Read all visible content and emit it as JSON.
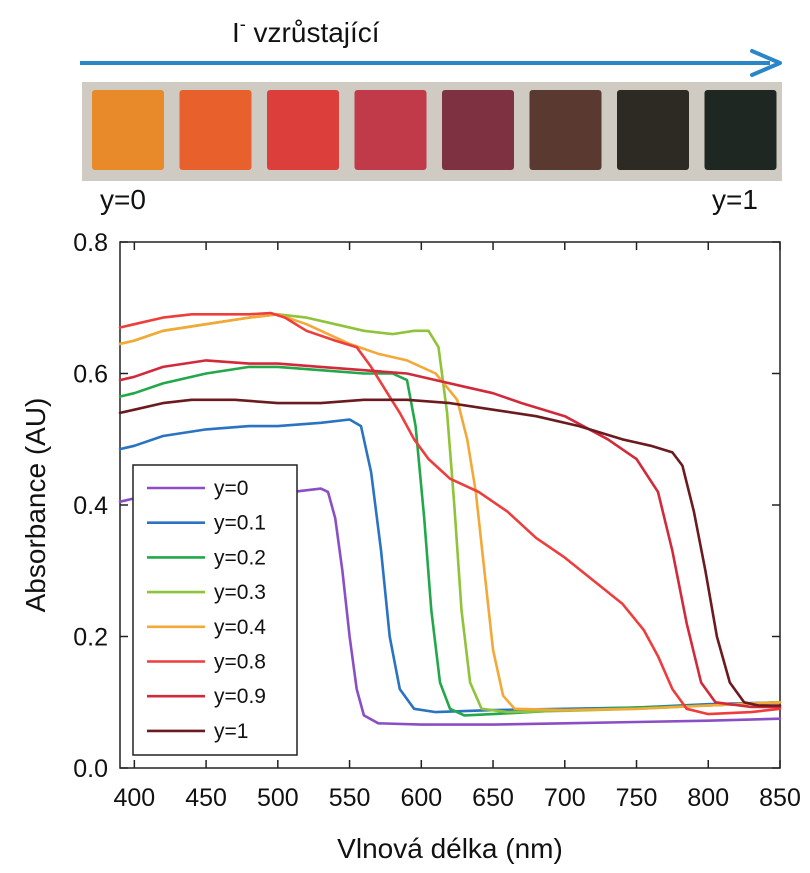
{
  "banner": {
    "ion_symbol": "I",
    "ion_charge": "-",
    "text": " vzrůstající",
    "arrow_color": "#2b86c8"
  },
  "strip": {
    "left_label": "y=0",
    "right_label": "y=1",
    "frame_color": "#cfcac2",
    "samples": [
      {
        "color": "#e88a2a"
      },
      {
        "color": "#e8602c"
      },
      {
        "color": "#dc3f3b"
      },
      {
        "color": "#c13a49"
      },
      {
        "color": "#7e3140"
      },
      {
        "color": "#5a3a30"
      },
      {
        "color": "#2c2a22"
      },
      {
        "color": "#1e2722"
      }
    ]
  },
  "chart_data": {
    "type": "line",
    "xlabel": "Vlnová délka (nm)",
    "ylabel": "Absorbance (AU)",
    "xlim": [
      390,
      850
    ],
    "ylim": [
      0.0,
      0.8
    ],
    "x_ticks": [
      400,
      450,
      500,
      550,
      600,
      650,
      700,
      750,
      800,
      850
    ],
    "x_tick_labels": [
      "400",
      "450",
      "500",
      "550",
      "600",
      "650",
      "700",
      "750",
      "800",
      "850"
    ],
    "y_ticks": [
      0.0,
      0.2,
      0.4,
      0.6,
      0.8
    ],
    "y_tick_labels": [
      "0.0",
      "0.2",
      "0.4",
      "0.6",
      "0.8"
    ],
    "grid": false,
    "legend_position": "bottom-left",
    "series": [
      {
        "name": "y=0",
        "color": "#8a4fc4",
        "points": [
          [
            390,
            0.405
          ],
          [
            400,
            0.41
          ],
          [
            430,
            0.41
          ],
          [
            460,
            0.41
          ],
          [
            490,
            0.415
          ],
          [
            510,
            0.42
          ],
          [
            530,
            0.425
          ],
          [
            535,
            0.42
          ],
          [
            540,
            0.38
          ],
          [
            545,
            0.3
          ],
          [
            550,
            0.2
          ],
          [
            555,
            0.12
          ],
          [
            560,
            0.08
          ],
          [
            570,
            0.068
          ],
          [
            600,
            0.066
          ],
          [
            650,
            0.066
          ],
          [
            700,
            0.068
          ],
          [
            750,
            0.07
          ],
          [
            800,
            0.072
          ],
          [
            850,
            0.075
          ]
        ]
      },
      {
        "name": "y=0.1",
        "color": "#2a72c2",
        "points": [
          [
            390,
            0.485
          ],
          [
            400,
            0.49
          ],
          [
            420,
            0.505
          ],
          [
            450,
            0.515
          ],
          [
            480,
            0.52
          ],
          [
            500,
            0.52
          ],
          [
            530,
            0.525
          ],
          [
            550,
            0.53
          ],
          [
            558,
            0.52
          ],
          [
            565,
            0.45
          ],
          [
            572,
            0.33
          ],
          [
            578,
            0.2
          ],
          [
            585,
            0.12
          ],
          [
            595,
            0.09
          ],
          [
            610,
            0.085
          ],
          [
            650,
            0.088
          ],
          [
            700,
            0.09
          ],
          [
            750,
            0.092
          ],
          [
            800,
            0.097
          ],
          [
            850,
            0.1
          ]
        ]
      },
      {
        "name": "y=0.2",
        "color": "#22a84a",
        "points": [
          [
            390,
            0.565
          ],
          [
            400,
            0.57
          ],
          [
            420,
            0.585
          ],
          [
            450,
            0.6
          ],
          [
            480,
            0.61
          ],
          [
            500,
            0.61
          ],
          [
            530,
            0.605
          ],
          [
            560,
            0.6
          ],
          [
            580,
            0.6
          ],
          [
            590,
            0.59
          ],
          [
            596,
            0.52
          ],
          [
            602,
            0.38
          ],
          [
            607,
            0.24
          ],
          [
            613,
            0.13
          ],
          [
            620,
            0.09
          ],
          [
            630,
            0.08
          ],
          [
            650,
            0.082
          ],
          [
            700,
            0.088
          ],
          [
            750,
            0.092
          ],
          [
            800,
            0.095
          ],
          [
            850,
            0.1
          ]
        ]
      },
      {
        "name": "y=0.3",
        "color": "#8ec33a",
        "points": [
          [
            390,
            0.645
          ],
          [
            400,
            0.65
          ],
          [
            420,
            0.665
          ],
          [
            450,
            0.675
          ],
          [
            480,
            0.685
          ],
          [
            500,
            0.69
          ],
          [
            520,
            0.685
          ],
          [
            540,
            0.675
          ],
          [
            560,
            0.665
          ],
          [
            580,
            0.66
          ],
          [
            595,
            0.665
          ],
          [
            605,
            0.665
          ],
          [
            612,
            0.64
          ],
          [
            618,
            0.54
          ],
          [
            623,
            0.4
          ],
          [
            628,
            0.24
          ],
          [
            634,
            0.13
          ],
          [
            642,
            0.09
          ],
          [
            660,
            0.085
          ],
          [
            700,
            0.087
          ],
          [
            750,
            0.09
          ],
          [
            800,
            0.095
          ],
          [
            850,
            0.1
          ]
        ]
      },
      {
        "name": "y=0.4",
        "color": "#f3a838",
        "points": [
          [
            390,
            0.645
          ],
          [
            400,
            0.65
          ],
          [
            420,
            0.665
          ],
          [
            450,
            0.675
          ],
          [
            480,
            0.685
          ],
          [
            500,
            0.69
          ],
          [
            520,
            0.675
          ],
          [
            550,
            0.645
          ],
          [
            570,
            0.63
          ],
          [
            590,
            0.62
          ],
          [
            610,
            0.6
          ],
          [
            625,
            0.56
          ],
          [
            632,
            0.5
          ],
          [
            638,
            0.42
          ],
          [
            644,
            0.3
          ],
          [
            650,
            0.18
          ],
          [
            657,
            0.11
          ],
          [
            665,
            0.09
          ],
          [
            700,
            0.088
          ],
          [
            750,
            0.09
          ],
          [
            800,
            0.095
          ],
          [
            850,
            0.1
          ]
        ]
      },
      {
        "name": "y=0.8",
        "color": "#ee3d3d",
        "points": [
          [
            390,
            0.67
          ],
          [
            400,
            0.675
          ],
          [
            420,
            0.685
          ],
          [
            440,
            0.69
          ],
          [
            460,
            0.69
          ],
          [
            480,
            0.69
          ],
          [
            495,
            0.692
          ],
          [
            505,
            0.685
          ],
          [
            520,
            0.665
          ],
          [
            540,
            0.65
          ],
          [
            555,
            0.64
          ],
          [
            565,
            0.61
          ],
          [
            575,
            0.575
          ],
          [
            585,
            0.54
          ],
          [
            595,
            0.5
          ],
          [
            605,
            0.47
          ],
          [
            620,
            0.44
          ],
          [
            640,
            0.42
          ],
          [
            660,
            0.39
          ],
          [
            680,
            0.35
          ],
          [
            700,
            0.32
          ],
          [
            720,
            0.285
          ],
          [
            740,
            0.25
          ],
          [
            755,
            0.21
          ],
          [
            765,
            0.17
          ],
          [
            775,
            0.12
          ],
          [
            785,
            0.09
          ],
          [
            800,
            0.082
          ],
          [
            830,
            0.085
          ],
          [
            850,
            0.09
          ]
        ]
      },
      {
        "name": "y=0.9",
        "color": "#d12a3a",
        "points": [
          [
            390,
            0.59
          ],
          [
            400,
            0.595
          ],
          [
            420,
            0.61
          ],
          [
            450,
            0.62
          ],
          [
            480,
            0.615
          ],
          [
            500,
            0.615
          ],
          [
            530,
            0.61
          ],
          [
            560,
            0.605
          ],
          [
            590,
            0.6
          ],
          [
            610,
            0.59
          ],
          [
            630,
            0.58
          ],
          [
            650,
            0.57
          ],
          [
            670,
            0.555
          ],
          [
            700,
            0.535
          ],
          [
            730,
            0.5
          ],
          [
            750,
            0.47
          ],
          [
            765,
            0.42
          ],
          [
            775,
            0.33
          ],
          [
            785,
            0.22
          ],
          [
            795,
            0.13
          ],
          [
            805,
            0.1
          ],
          [
            830,
            0.093
          ],
          [
            850,
            0.093
          ]
        ]
      },
      {
        "name": "y=1",
        "color": "#6b1a1f",
        "points": [
          [
            390,
            0.54
          ],
          [
            400,
            0.545
          ],
          [
            420,
            0.555
          ],
          [
            440,
            0.56
          ],
          [
            470,
            0.56
          ],
          [
            500,
            0.555
          ],
          [
            530,
            0.555
          ],
          [
            560,
            0.56
          ],
          [
            590,
            0.56
          ],
          [
            620,
            0.555
          ],
          [
            650,
            0.545
          ],
          [
            680,
            0.535
          ],
          [
            710,
            0.52
          ],
          [
            740,
            0.5
          ],
          [
            760,
            0.49
          ],
          [
            775,
            0.48
          ],
          [
            782,
            0.46
          ],
          [
            790,
            0.39
          ],
          [
            798,
            0.3
          ],
          [
            806,
            0.2
          ],
          [
            815,
            0.13
          ],
          [
            825,
            0.1
          ],
          [
            835,
            0.095
          ],
          [
            850,
            0.095
          ]
        ]
      }
    ]
  }
}
